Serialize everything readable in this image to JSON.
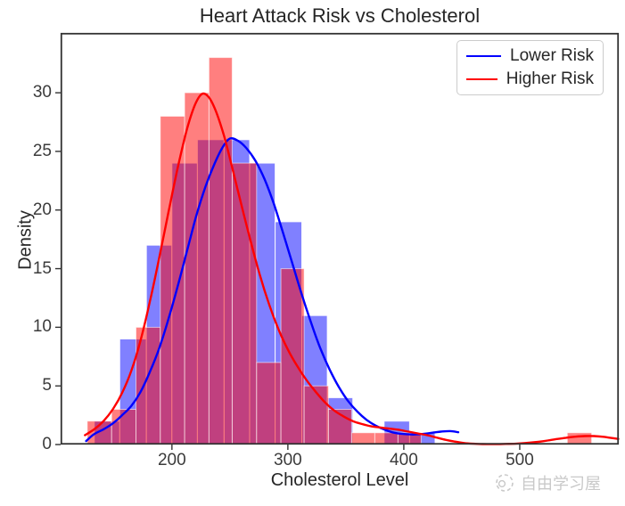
{
  "figure": {
    "title": "Heart Attack Risk vs Cholesterol"
  },
  "watermark": {
    "text": "自由学习屋",
    "icon": "circle-logo-icon",
    "color": "#c9c9c9"
  },
  "colors": {
    "lower_risk_bar": "#8080ff",
    "higher_risk_bar_base": "#ff0000",
    "higher_risk_bar_alpha": 0.5,
    "overlap_appearance": "#bf4080",
    "lower_risk_line": "#0000ff",
    "higher_risk_line": "#ff0000",
    "spine": "#333333",
    "tick_text": "#3b3b3b"
  },
  "chart_data": {
    "type": "histogram",
    "subtype": "overlaid histograms with KDE curves",
    "title": "Heart Attack Risk vs Cholesterol",
    "xlabel": "Cholesterol Level",
    "ylabel": "Density",
    "xlim": [
      104,
      585.4
    ],
    "ylim": [
      0,
      35.1
    ],
    "xticks": [
      200,
      300,
      400,
      500
    ],
    "yticks": [
      0,
      5,
      10,
      15,
      20,
      25,
      30
    ],
    "grid": false,
    "legend": {
      "position": "upper right",
      "entries": [
        {
          "label": "Lower Risk",
          "color": "#0000ff"
        },
        {
          "label": "Higher Risk",
          "color": "#ff0000"
        }
      ]
    },
    "series": [
      {
        "name": "Lower Risk",
        "bar_color": "#8080ff",
        "line_color": "#0000ff",
        "bins": [
          [
            133,
            155,
            2
          ],
          [
            155,
            178,
            9
          ],
          [
            178,
            200,
            17
          ],
          [
            200,
            222,
            24
          ],
          [
            222,
            245,
            26
          ],
          [
            245,
            267,
            26
          ],
          [
            267,
            289,
            24
          ],
          [
            289,
            312,
            19
          ],
          [
            312,
            334,
            11
          ],
          [
            334,
            356,
            4
          ],
          [
            383,
            405,
            2
          ],
          [
            405,
            427,
            1
          ]
        ],
        "kde": [
          [
            126,
            0.3
          ],
          [
            133,
            0.9
          ],
          [
            141,
            1.3
          ],
          [
            149,
            1.8
          ],
          [
            157,
            2.5
          ],
          [
            165,
            3.3
          ],
          [
            173,
            4.5
          ],
          [
            181,
            6.2
          ],
          [
            189,
            8.2
          ],
          [
            197,
            10.7
          ],
          [
            205,
            13.5
          ],
          [
            213,
            16.5
          ],
          [
            221,
            19.5
          ],
          [
            229,
            22.0
          ],
          [
            237,
            24.0
          ],
          [
            244,
            25.4
          ],
          [
            250,
            26.1
          ],
          [
            257,
            25.9
          ],
          [
            264,
            25.3
          ],
          [
            272,
            24.2
          ],
          [
            280,
            22.6
          ],
          [
            288,
            20.5
          ],
          [
            296,
            18.0
          ],
          [
            304,
            15.4
          ],
          [
            312,
            12.8
          ],
          [
            320,
            10.4
          ],
          [
            328,
            8.2
          ],
          [
            336,
            6.4
          ],
          [
            344,
            4.9
          ],
          [
            352,
            3.7
          ],
          [
            360,
            2.8
          ],
          [
            368,
            2.1
          ],
          [
            376,
            1.6
          ],
          [
            384,
            1.25
          ],
          [
            392,
            1.0
          ],
          [
            400,
            0.9
          ],
          [
            408,
            0.85
          ],
          [
            416,
            0.9
          ],
          [
            424,
            1.0
          ],
          [
            432,
            1.1
          ],
          [
            440,
            1.15
          ],
          [
            447,
            1.05
          ]
        ]
      },
      {
        "name": "Higher Risk",
        "bar_color": "rgba(255,0,0,0.5)",
        "line_color": "#ff0000",
        "bins": [
          [
            127,
            148,
            2
          ],
          [
            148,
            169,
            3
          ],
          [
            169,
            190,
            10
          ],
          [
            190,
            211,
            28
          ],
          [
            211,
            232,
            30
          ],
          [
            232,
            252,
            33
          ],
          [
            252,
            273,
            24
          ],
          [
            273,
            294,
            7
          ],
          [
            294,
            314,
            15
          ],
          [
            314,
            335,
            5
          ],
          [
            335,
            355,
            3
          ],
          [
            355,
            375,
            1
          ],
          [
            375,
            395,
            1
          ],
          [
            395,
            415,
            1
          ],
          [
            541,
            562,
            1
          ]
        ],
        "kde": [
          [
            125,
            0.8
          ],
          [
            133,
            1.3
          ],
          [
            141,
            2.0
          ],
          [
            149,
            3.0
          ],
          [
            157,
            4.4
          ],
          [
            165,
            6.3
          ],
          [
            173,
            8.9
          ],
          [
            181,
            12.2
          ],
          [
            189,
            15.9
          ],
          [
            197,
            19.8
          ],
          [
            205,
            23.6
          ],
          [
            213,
            26.9
          ],
          [
            220,
            29.0
          ],
          [
            226,
            29.9
          ],
          [
            232,
            29.6
          ],
          [
            238,
            28.4
          ],
          [
            245,
            26.3
          ],
          [
            252,
            23.6
          ],
          [
            260,
            20.4
          ],
          [
            268,
            17.3
          ],
          [
            276,
            14.4
          ],
          [
            284,
            11.9
          ],
          [
            292,
            9.8
          ],
          [
            300,
            8.1
          ],
          [
            308,
            6.7
          ],
          [
            316,
            5.5
          ],
          [
            324,
            4.5
          ],
          [
            332,
            3.6
          ],
          [
            340,
            2.9
          ],
          [
            348,
            2.4
          ],
          [
            356,
            2.0
          ],
          [
            364,
            1.75
          ],
          [
            372,
            1.55
          ],
          [
            380,
            1.45
          ],
          [
            388,
            1.35
          ],
          [
            396,
            1.25
          ],
          [
            404,
            1.1
          ],
          [
            412,
            0.95
          ],
          [
            420,
            0.8
          ],
          [
            428,
            0.6
          ],
          [
            436,
            0.4
          ],
          [
            444,
            0.25
          ],
          [
            452,
            0.13
          ],
          [
            460,
            0.07
          ],
          [
            468,
            0.04
          ],
          [
            478,
            0.03
          ],
          [
            488,
            0.05
          ],
          [
            498,
            0.08
          ],
          [
            508,
            0.15
          ],
          [
            516,
            0.23
          ],
          [
            524,
            0.34
          ],
          [
            532,
            0.47
          ],
          [
            540,
            0.58
          ],
          [
            548,
            0.67
          ],
          [
            556,
            0.72
          ],
          [
            564,
            0.72
          ],
          [
            572,
            0.66
          ],
          [
            578,
            0.58
          ],
          [
            585,
            0.48
          ]
        ]
      }
    ]
  }
}
